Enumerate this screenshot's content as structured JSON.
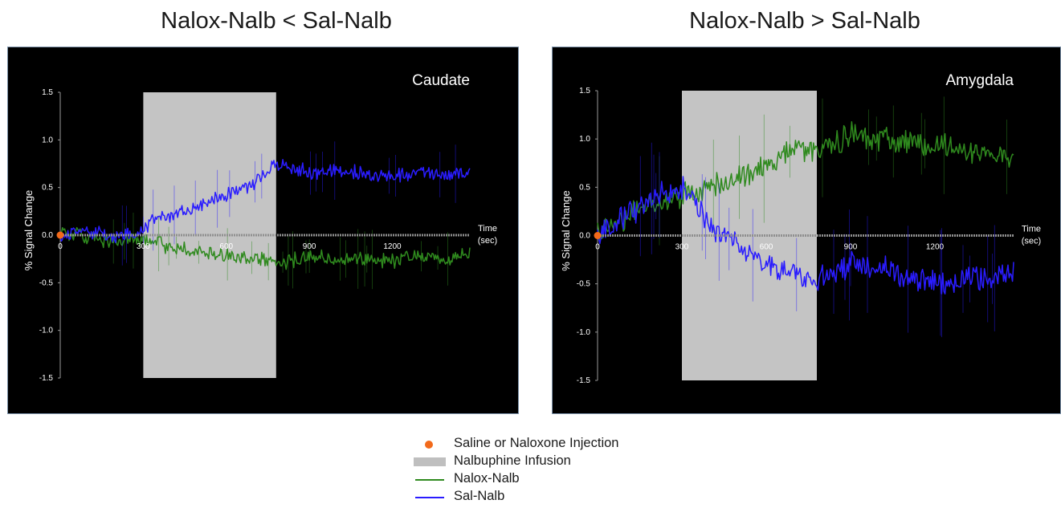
{
  "colors": {
    "nalox": "#2f8a1e",
    "sal": "#2a1cff",
    "injection": "#f26a1b",
    "infusion": "#c4c4c4",
    "background": "#000000"
  },
  "legend": [
    {
      "label": "Saline or Naloxone Injection",
      "swatch": "dot"
    },
    {
      "label": "Nalbuphine Infusion",
      "swatch": "bar"
    },
    {
      "label": "Nalox-Nalb",
      "swatch": "line-green"
    },
    {
      "label": "Sal-Nalb",
      "swatch": "line-blue"
    }
  ],
  "chart_data": [
    {
      "type": "line",
      "title": "Nalox-Nalb < Sal-Nalb",
      "region_label": "Caudate",
      "ylabel": "% Signal Change",
      "xlabel_line1": "Time",
      "xlabel_line2": "(sec)",
      "xlim": [
        0,
        1480
      ],
      "ylim": [
        -1.5,
        1.5
      ],
      "x_ticks": [
        "0",
        "300",
        "600",
        "900",
        "1200"
      ],
      "y_ticks": [
        "1.5",
        "1.0",
        "0.5",
        "0.0",
        "-0.5",
        "-1.0",
        "-1.5"
      ],
      "injection_time": 0,
      "infusion_window": [
        300,
        780
      ],
      "series": [
        {
          "name": "Nalox-Nalb",
          "color": "#2f8a1e",
          "x": [
            0,
            100,
            200,
            300,
            400,
            500,
            600,
            700,
            780,
            900,
            1000,
            1100,
            1200,
            1300,
            1400,
            1480
          ],
          "y": [
            0.05,
            -0.03,
            -0.07,
            -0.05,
            -0.12,
            -0.18,
            -0.2,
            -0.24,
            -0.3,
            -0.22,
            -0.25,
            -0.25,
            -0.27,
            -0.22,
            -0.25,
            -0.2
          ]
        },
        {
          "name": "Sal-Nalb",
          "color": "#2a1cff",
          "x": [
            0,
            100,
            200,
            300,
            350,
            400,
            500,
            600,
            700,
            780,
            900,
            1000,
            1100,
            1200,
            1300,
            1400,
            1480
          ],
          "y": [
            0.0,
            0.05,
            -0.02,
            0.05,
            0.2,
            0.2,
            0.3,
            0.42,
            0.55,
            0.75,
            0.65,
            0.68,
            0.65,
            0.62,
            0.65,
            0.63,
            0.67
          ]
        }
      ]
    },
    {
      "type": "line",
      "title": "Nalox-Nalb > Sal-Nalb",
      "region_label": "Amygdala",
      "ylabel": "% Signal Change",
      "xlabel_line1": "Time",
      "xlabel_line2": "(sec)",
      "xlim": [
        0,
        1480
      ],
      "ylim": [
        -1.5,
        1.5
      ],
      "x_ticks": [
        "0",
        "300",
        "600",
        "900",
        "1200"
      ],
      "y_ticks": [
        "1.5",
        "1.0",
        "0.5",
        "0.0",
        "-0.5",
        "-1.0",
        "-1.5"
      ],
      "injection_time": 0,
      "infusion_window": [
        300,
        780
      ],
      "series": [
        {
          "name": "Nalox-Nalb",
          "color": "#2f8a1e",
          "x": [
            0,
            100,
            200,
            300,
            400,
            500,
            600,
            700,
            780,
            900,
            1000,
            1100,
            1200,
            1300,
            1400,
            1480
          ],
          "y": [
            0.0,
            0.2,
            0.35,
            0.4,
            0.5,
            0.6,
            0.7,
            0.9,
            0.88,
            1.05,
            1.0,
            0.95,
            0.95,
            0.9,
            0.85,
            0.8
          ]
        },
        {
          "name": "Sal-Nalb",
          "color": "#2a1cff",
          "x": [
            0,
            100,
            200,
            300,
            350,
            400,
            500,
            600,
            700,
            780,
            900,
            1000,
            1100,
            1200,
            1300,
            1400,
            1480
          ],
          "y": [
            0.0,
            0.2,
            0.4,
            0.5,
            0.35,
            0.1,
            -0.1,
            -0.3,
            -0.4,
            -0.45,
            -0.3,
            -0.3,
            -0.45,
            -0.5,
            -0.45,
            -0.45,
            -0.4
          ]
        }
      ]
    }
  ]
}
